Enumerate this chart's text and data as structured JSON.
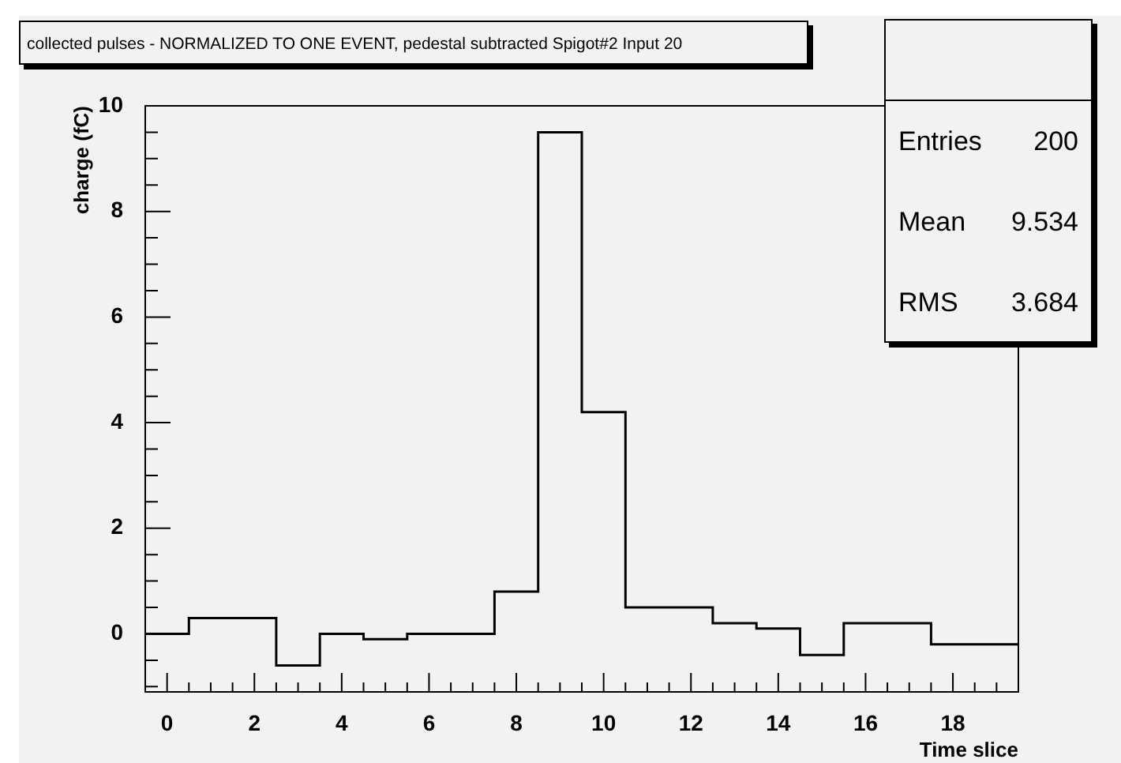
{
  "chart_data": {
    "type": "histogram",
    "title": "collected pulses - NORMALIZED TO ONE EVENT, pedestal subtracted Spigot#2 Input 20",
    "xlabel": "Time slice",
    "ylabel": "charge (fC)",
    "bins": [
      -0.5,
      0.5,
      1.5,
      2.5,
      3.5,
      4.5,
      5.5,
      6.5,
      7.5,
      8.5,
      9.5,
      10.5,
      11.5,
      12.5,
      13.5,
      14.5,
      15.5,
      16.5,
      17.5,
      18.5,
      19.5
    ],
    "values": [
      0,
      0.3,
      0.3,
      -0.6,
      0,
      -0.1,
      0,
      0,
      0.8,
      9.5,
      4.2,
      0.5,
      0.5,
      0.2,
      0.1,
      -0.4,
      0.2,
      0.2,
      -0.2,
      -0.2
    ],
    "color": "#000000",
    "xlim": [
      -0.5,
      19.5
    ],
    "ylim": [
      -1.1,
      10
    ],
    "xticks": [
      {
        "value": -0.5,
        "label": null
      },
      0,
      {
        "value": 0.5,
        "label": null
      },
      {
        "value": 1,
        "label": null
      },
      {
        "value": 1.5,
        "label": null
      },
      2,
      {
        "value": 2.5,
        "label": null
      },
      {
        "value": 3,
        "label": null
      },
      {
        "value": 3.5,
        "label": null
      },
      4,
      {
        "value": 4.5,
        "label": null
      },
      {
        "value": 5,
        "label": null
      },
      {
        "value": 5.5,
        "label": null
      },
      6,
      {
        "value": 6.5,
        "label": null
      },
      {
        "value": 7,
        "label": null
      },
      {
        "value": 7.5,
        "label": null
      },
      8,
      {
        "value": 8.5,
        "label": null
      },
      {
        "value": 9,
        "label": null
      },
      {
        "value": 9.5,
        "label": null
      },
      10,
      {
        "value": 10.5,
        "label": null
      },
      {
        "value": 11,
        "label": null
      },
      {
        "value": 11.5,
        "label": null
      },
      12,
      {
        "value": 12.5,
        "label": null
      },
      {
        "value": 13,
        "label": null
      },
      {
        "value": 13.5,
        "label": null
      },
      14,
      {
        "value": 14.5,
        "label": null
      },
      {
        "value": 15,
        "label": null
      },
      {
        "value": 15.5,
        "label": null
      },
      16,
      {
        "value": 16.5,
        "label": null
      },
      {
        "value": 17,
        "label": null
      },
      {
        "value": 17.5,
        "label": null
      },
      18,
      {
        "value": 18.5,
        "label": null
      },
      {
        "value": 19,
        "label": null
      }
    ],
    "yticks": [
      {
        "value": -1,
        "label": null
      },
      {
        "value": -0.5,
        "label": null
      },
      0,
      {
        "value": 0.5,
        "label": null
      },
      {
        "value": 1,
        "label": null
      },
      {
        "value": 1.5,
        "label": null
      },
      2,
      {
        "value": 2.5,
        "label": null
      },
      {
        "value": 3,
        "label": null
      },
      {
        "value": 3.5,
        "label": null
      },
      4,
      {
        "value": 4.5,
        "label": null
      },
      {
        "value": 5,
        "label": null
      },
      {
        "value": 5.5,
        "label": null
      },
      6,
      {
        "value": 6.5,
        "label": null
      },
      {
        "value": 7,
        "label": null
      },
      {
        "value": 7.5,
        "label": null
      },
      8,
      {
        "value": 8.5,
        "label": null
      },
      {
        "value": 9,
        "label": null
      },
      {
        "value": 9.5,
        "label": null
      },
      10
    ],
    "annotations": [
      "Entries",
      "200",
      "Mean",
      "9.534",
      "RMS",
      "3.684"
    ]
  }
}
